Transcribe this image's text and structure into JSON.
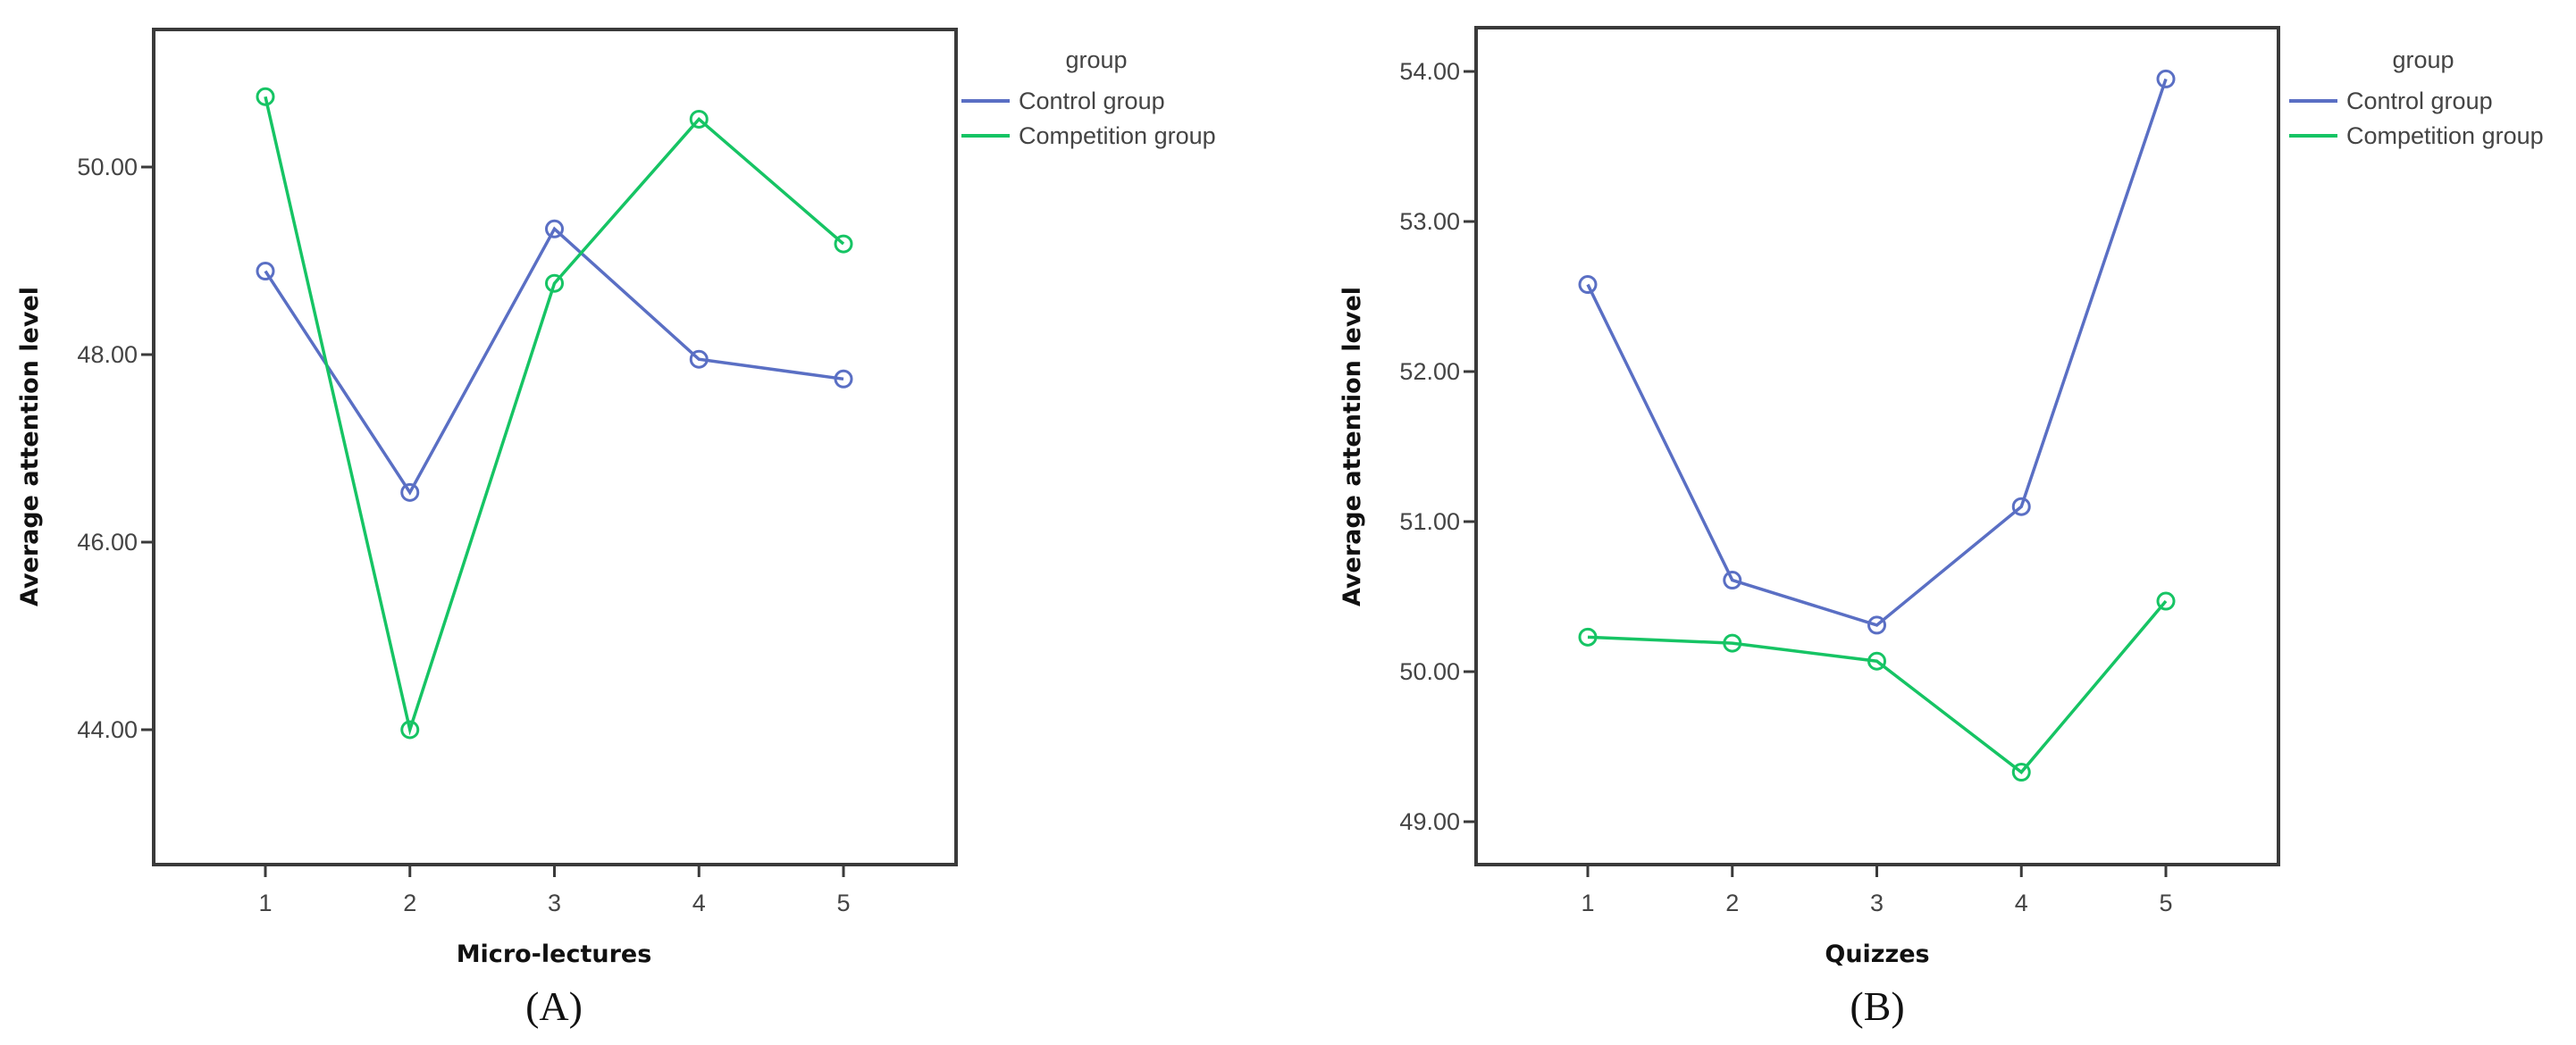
{
  "colors": {
    "control": "#5a6fc4",
    "competition": "#16c464",
    "axis": "#3a3a3a"
  },
  "chart_data": [
    {
      "type": "line",
      "panel": "A",
      "caption": "(A)",
      "title": "",
      "xlabel": "Micro-lectures",
      "ylabel": "Average attention level",
      "x": [
        1,
        2,
        3,
        4,
        5
      ],
      "x_tick_labels": [
        "1",
        "2",
        "3",
        "4",
        "5"
      ],
      "y_ticks": [
        44.0,
        46.0,
        48.0,
        50.0
      ],
      "y_tick_labels": [
        "44.00",
        "46.00",
        "48.00",
        "50.00"
      ],
      "ylim": [
        42.2,
        51.4
      ],
      "grid": false,
      "legend": {
        "title": "group",
        "position": "right-outside",
        "entries": [
          "Control group",
          "Competition group"
        ]
      },
      "series": [
        {
          "name": "Control group",
          "values": [
            48.89,
            46.53,
            49.34,
            47.95,
            47.74
          ]
        },
        {
          "name": "Competition group",
          "values": [
            50.75,
            44.0,
            48.76,
            50.51,
            49.18
          ]
        }
      ]
    },
    {
      "type": "line",
      "panel": "B",
      "caption": "(B)",
      "title": "",
      "xlabel": "Quizzes",
      "ylabel": "Average attention level",
      "x": [
        1,
        2,
        3,
        4,
        5
      ],
      "x_tick_labels": [
        "1",
        "2",
        "3",
        "4",
        "5"
      ],
      "y_ticks": [
        49.0,
        50.0,
        51.0,
        52.0,
        53.0,
        54.0
      ],
      "y_tick_labels": [
        "49.00",
        "50.00",
        "51.00",
        "52.00",
        "53.00",
        "54.00"
      ],
      "ylim": [
        48.72,
        54.29
      ],
      "grid": false,
      "legend": {
        "title": "group",
        "position": "right-outside",
        "entries": [
          "Control group",
          "Competition group"
        ]
      },
      "series": [
        {
          "name": "Control group",
          "values": [
            52.58,
            50.61,
            50.31,
            51.1,
            53.95
          ]
        },
        {
          "name": "Competition group",
          "values": [
            50.23,
            50.19,
            50.07,
            49.33,
            50.47
          ]
        }
      ]
    }
  ],
  "panels": [
    {
      "caption": "(A)",
      "xlabel": "Micro-lectures",
      "ylabel": "Average attention level",
      "legend_title": "group",
      "legend_control": "Control group",
      "legend_competition": "Competition group"
    },
    {
      "caption": "(B)",
      "xlabel": "Quizzes",
      "ylabel": "Average attention level",
      "legend_title": "group",
      "legend_control": "Control group",
      "legend_competition": "Competition group"
    }
  ]
}
